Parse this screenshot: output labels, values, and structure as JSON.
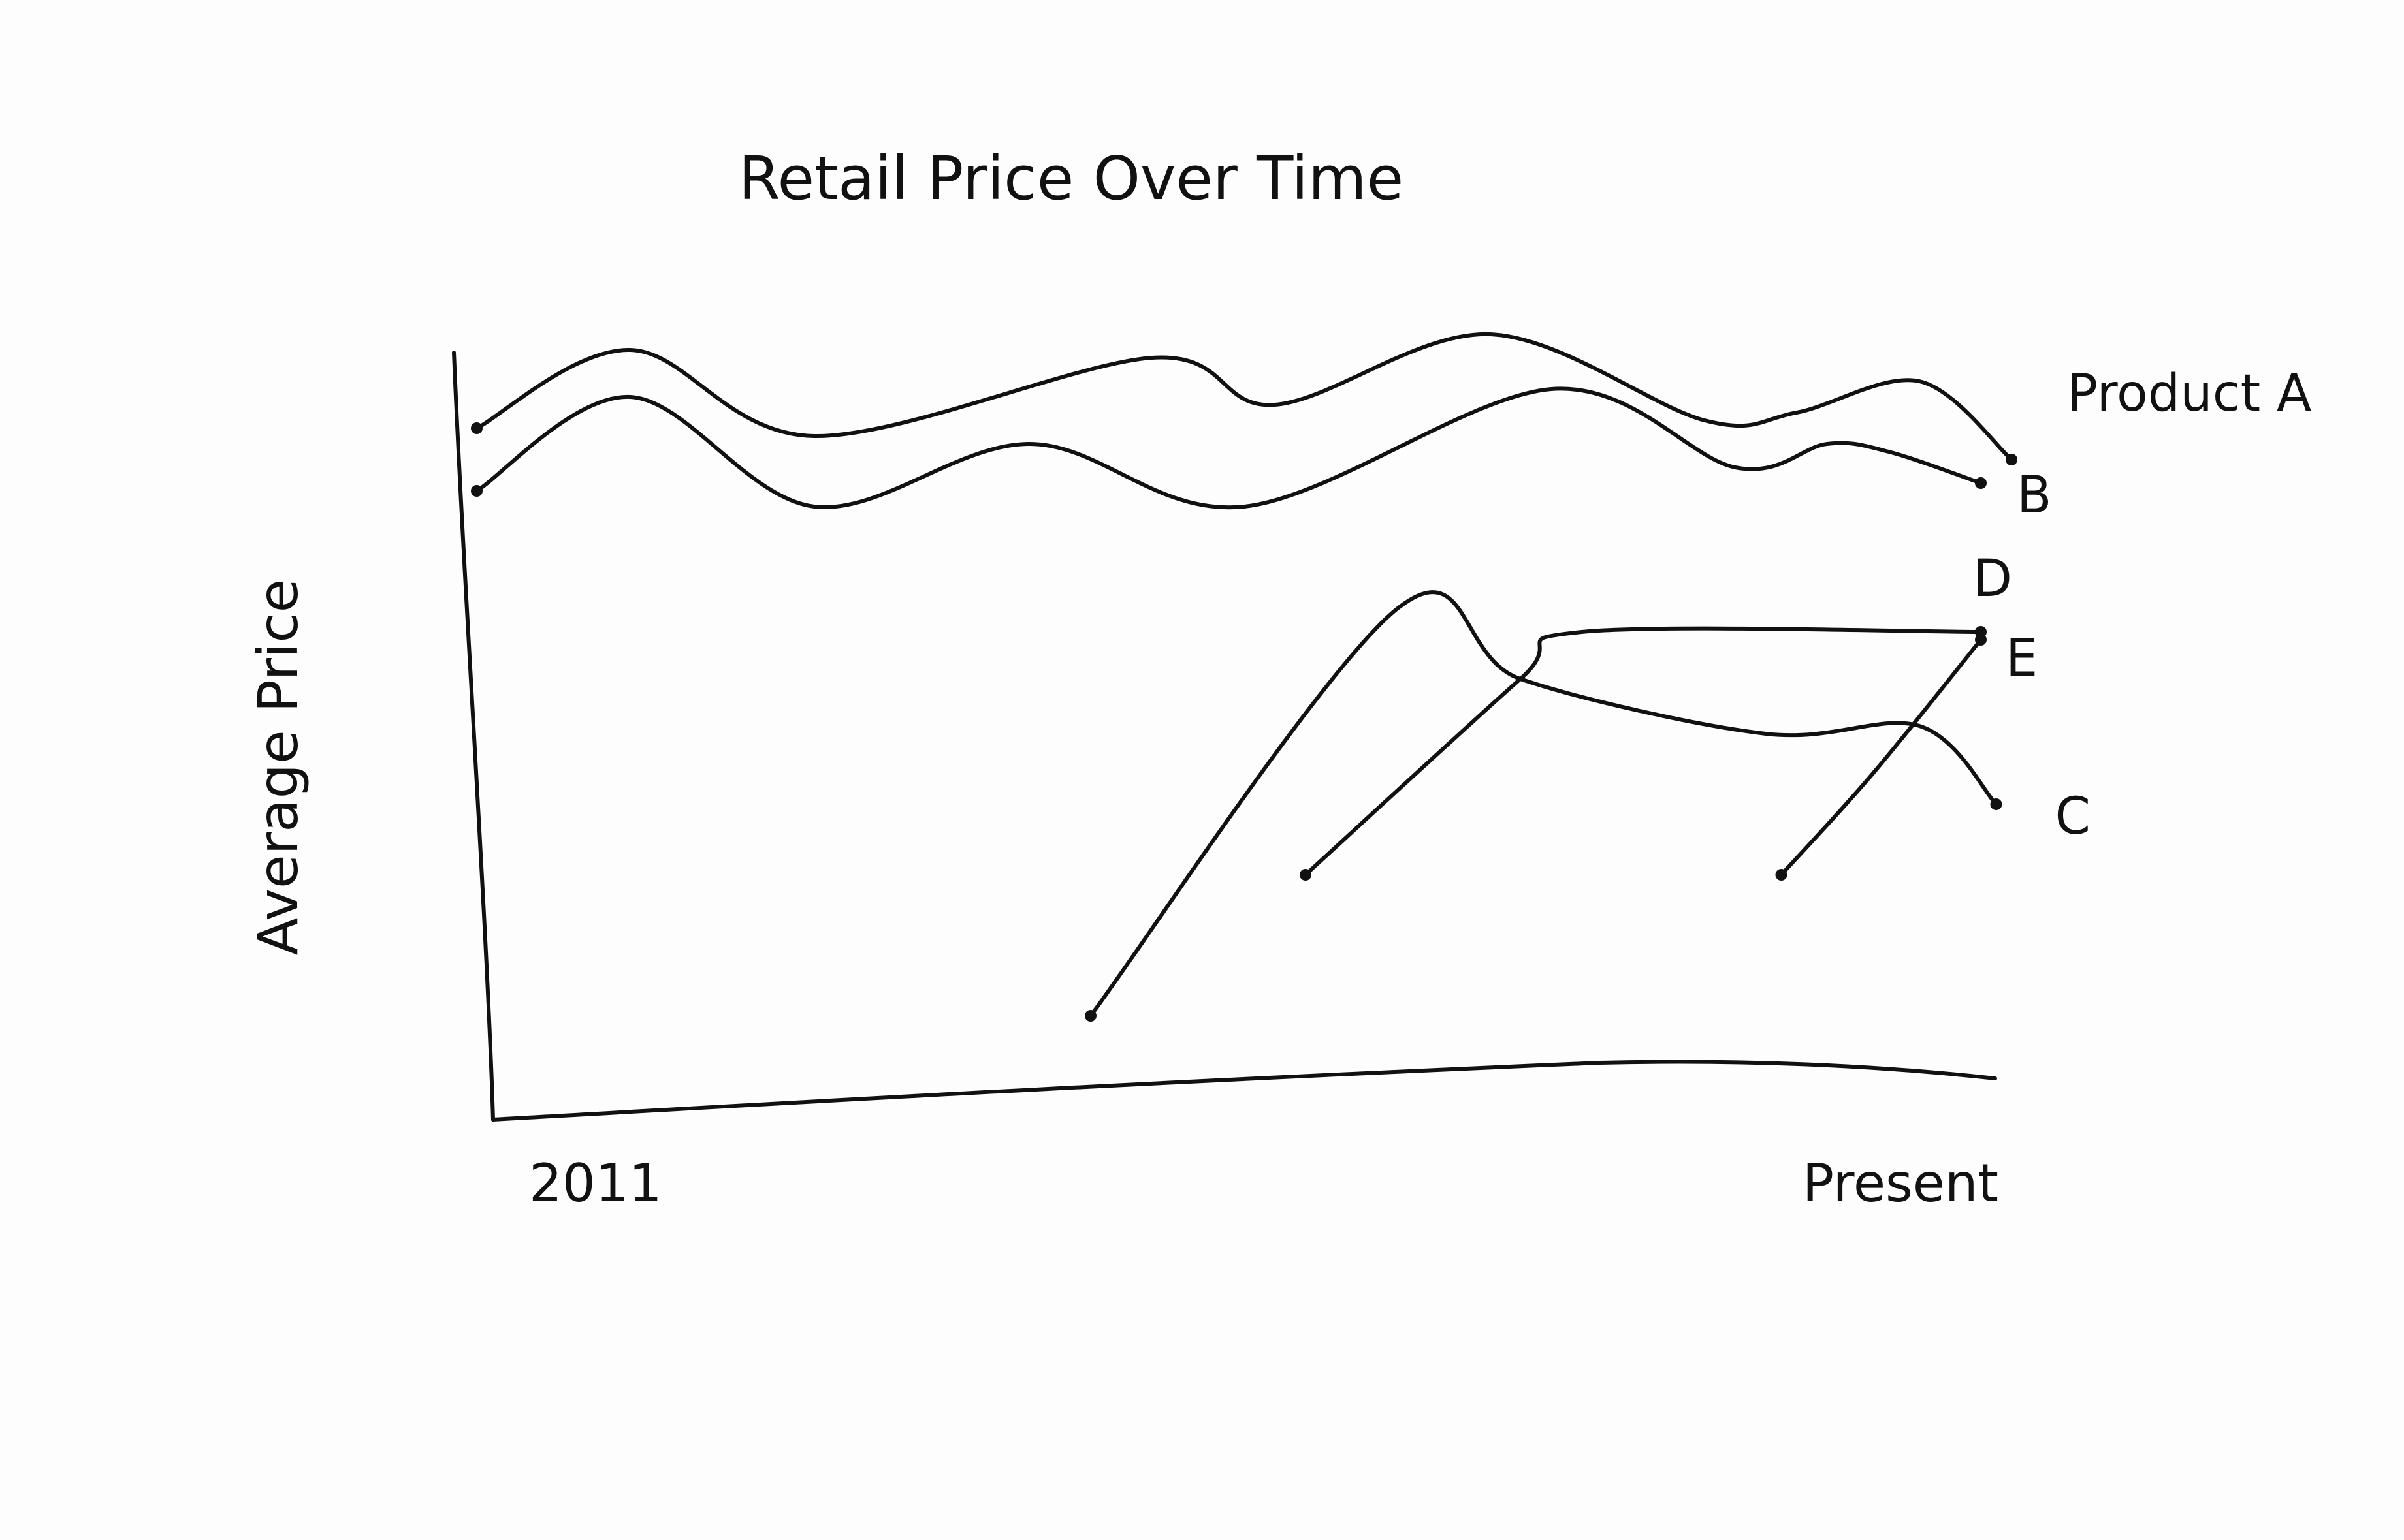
{
  "chart_data": {
    "type": "line",
    "title": "Retail Price Over Time",
    "xlabel": "",
    "ylabel": "Average Price",
    "x_tick_labels": [
      "2011",
      "Present"
    ],
    "xlim": [
      0,
      100
    ],
    "ylim": [
      0,
      100
    ],
    "grid": false,
    "legend": "inline labels at line ends",
    "style": "hand-drawn sketch, no numeric scale",
    "series": [
      {
        "name": "Product A",
        "x": [
          0,
          10,
          22,
          44,
          52,
          66,
          80,
          86,
          94,
          100
        ],
        "y": [
          87,
          97,
          86,
          96,
          90,
          99,
          88,
          89,
          93,
          83
        ]
      },
      {
        "name": "B",
        "x": [
          0,
          10,
          22,
          36,
          50,
          70,
          82,
          88,
          92,
          98
        ],
        "y": [
          79,
          91,
          77,
          85,
          77,
          92,
          82,
          85,
          84,
          80
        ]
      },
      {
        "name": "C",
        "x": [
          40,
          60,
          68,
          84,
          94,
          99
        ],
        "y": [
          12,
          64,
          55,
          48,
          49,
          39
        ]
      },
      {
        "name": "D",
        "x": [
          54,
          68,
          72,
          98
        ],
        "y": [
          30,
          55,
          61,
          61
        ]
      },
      {
        "name": "E",
        "x": [
          85,
          91,
          98
        ],
        "y": [
          30,
          43,
          60
        ]
      }
    ]
  }
}
